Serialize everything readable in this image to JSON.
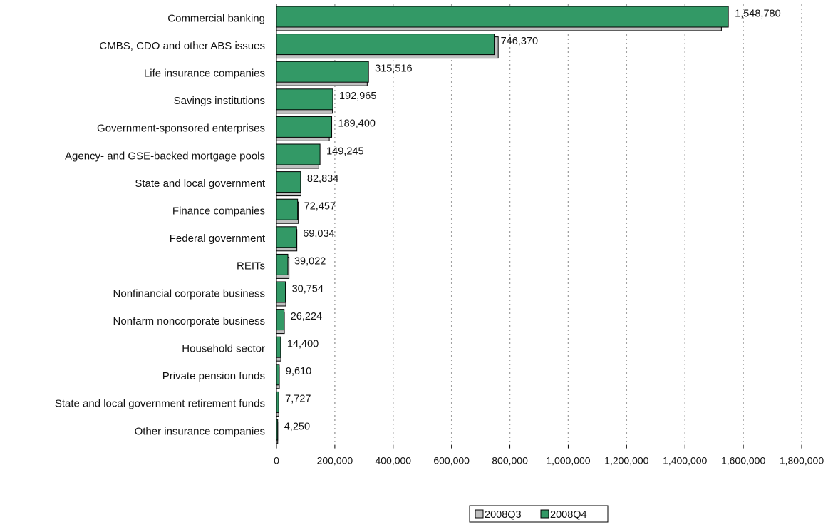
{
  "chart_data": {
    "type": "bar",
    "orientation": "horizontal",
    "categories": [
      "Commercial banking",
      "CMBS, CDO and other ABS issues",
      "Life insurance companies",
      "Savings institutions",
      "Government-sponsored enterprises",
      "Agency- and GSE-backed mortgage pools",
      "State and local government",
      "Finance companies",
      "Federal government",
      "REITs",
      "Nonfinancial corporate business",
      "Nonfarm noncorporate business",
      "Household sector",
      "Private pension funds",
      "State and local government retirement funds",
      "Other insurance companies"
    ],
    "series": [
      {
        "name": "2008Q3",
        "color": "#c0c0c0",
        "values": [
          1525000,
          760000,
          311000,
          192000,
          181000,
          145000,
          84000,
          75000,
          70000,
          43000,
          32000,
          27000,
          15000,
          9800,
          7900,
          4300
        ]
      },
      {
        "name": "2008Q4",
        "color": "#339966",
        "values": [
          1548780,
          746370,
          315516,
          192965,
          189400,
          149245,
          82834,
          72457,
          69034,
          39022,
          30754,
          26224,
          14400,
          9610,
          7727,
          4250
        ]
      }
    ],
    "data_labels": [
      "1,548,780",
      "746,370",
      "315,516",
      "192,965",
      "189,400",
      "149,245",
      "82,834",
      "72,457",
      "69,034",
      "39,022",
      "30,754",
      "26,224",
      "14,400",
      "9,610",
      "7,727",
      "4,250"
    ],
    "xlim": [
      0,
      1800000
    ],
    "x_ticks": [
      0,
      200000,
      400000,
      600000,
      800000,
      1000000,
      1200000,
      1400000,
      1600000,
      1800000
    ],
    "x_tick_labels": [
      "0",
      "200,000",
      "400,000",
      "600,000",
      "800,000",
      "1,000,000",
      "1,200,000",
      "1,400,000",
      "1,600,000",
      "1,800,000"
    ],
    "title": "",
    "xlabel": "",
    "ylabel": "",
    "grid": "vertical dotted",
    "legend_position": "bottom"
  }
}
